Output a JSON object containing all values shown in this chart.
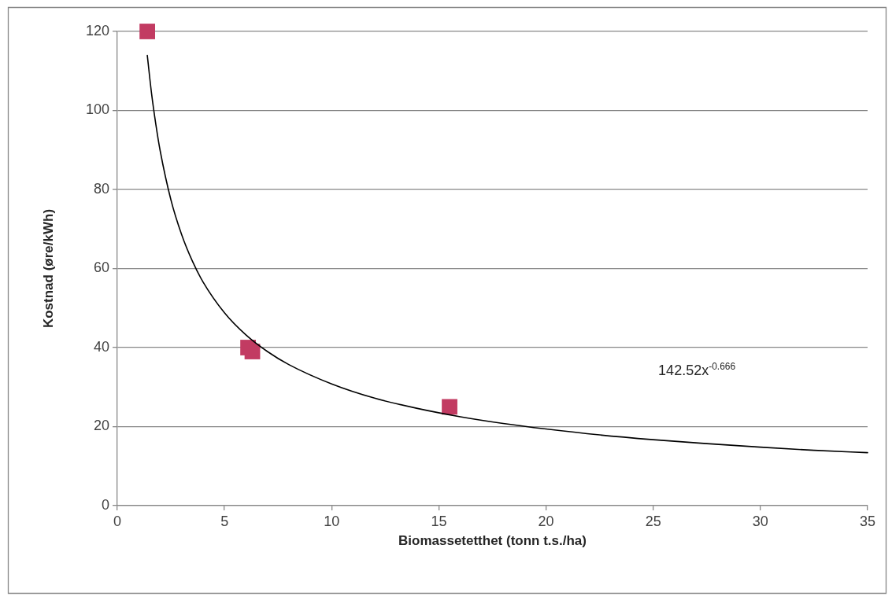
{
  "chart_data": {
    "type": "scatter",
    "xlabel": "Biomassetetthet (tonn t.s./ha)",
    "ylabel": "Kostnad (øre/kWh)",
    "xlim": [
      0,
      35
    ],
    "xticks": [
      0,
      5,
      10,
      15,
      20,
      25,
      30,
      35
    ],
    "ylim": [
      0,
      120
    ],
    "yticks": [
      0,
      20,
      40,
      60,
      80,
      100,
      120
    ],
    "grid": "y",
    "legend": false,
    "marker": "square",
    "annotations": [
      "142.52x$^{-0.666}$"
    ],
    "series": [
      {
        "color": "#c23b62",
        "x": [
          1.4,
          6.1,
          6.3,
          15.5
        ],
        "values": [
          120,
          40,
          39,
          25
        ]
      },
      {
        "type": "line",
        "color": "#000000",
        "marker": "none",
        "line_style": "solid",
        "x": [
          1.4,
          1.6,
          1.8,
          2,
          2.5,
          3,
          3.5,
          4,
          5,
          6,
          7,
          8,
          10,
          12,
          14,
          16,
          18,
          20,
          22.5,
          25,
          27.5,
          30,
          32.5,
          35
        ],
        "values": [
          113.9,
          104.2,
          96.4,
          89.8,
          77.4,
          68.6,
          61.9,
          56.6,
          48.8,
          43.2,
          39.0,
          35.7,
          30.8,
          27.2,
          24.6,
          22.5,
          20.8,
          19.4,
          17.9,
          16.7,
          15.7,
          14.8,
          14.0,
          13.4
        ]
      }
    ]
  }
}
